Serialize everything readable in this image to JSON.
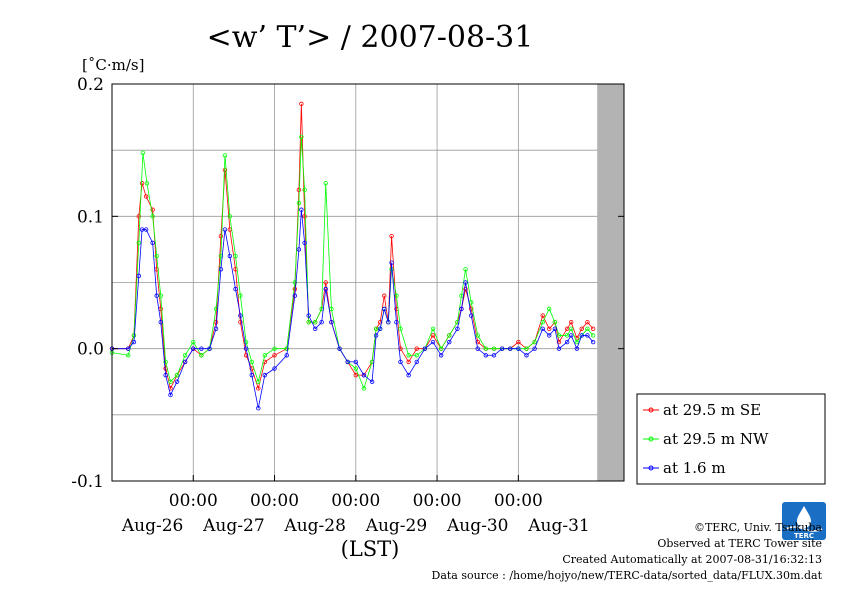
{
  "chart_data": {
    "type": "line",
    "title": "<w’ T’> / 2007-08-31",
    "ylabel": "[˚C·m/s]",
    "xlabel": "(LST)",
    "ylim": [
      -0.1,
      0.2
    ],
    "xlim": [
      0,
      6.3
    ],
    "yticks": [
      "0.2",
      "0.1",
      "0.0",
      "-0.1"
    ],
    "ytick_values": [
      0.2,
      0.1,
      0.0,
      -0.1
    ],
    "xticks_time": [
      "00:00",
      "00:00",
      "00:00",
      "00:00",
      "00:00"
    ],
    "xticks_date": [
      "Aug-26",
      "Aug-27",
      "Aug-28",
      "Aug-29",
      "Aug-30",
      "Aug-31"
    ],
    "no_data_shading": [
      5.97,
      6.3
    ],
    "grid": true,
    "legend_placement": "bottom-right outside",
    "series": [
      {
        "name": "at 29.5 m SE",
        "color": "#ff0000",
        "points": [
          [
            0.0,
            0.0
          ],
          [
            0.2,
            0.0
          ],
          [
            0.27,
            0.01
          ],
          [
            0.33,
            0.1
          ],
          [
            0.37,
            0.125
          ],
          [
            0.42,
            0.115
          ],
          [
            0.5,
            0.105
          ],
          [
            0.55,
            0.06
          ],
          [
            0.6,
            0.03
          ],
          [
            0.66,
            -0.015
          ],
          [
            0.72,
            -0.03
          ],
          [
            0.8,
            -0.02
          ],
          [
            0.9,
            -0.01
          ],
          [
            1.0,
            0.0
          ],
          [
            1.1,
            -0.005
          ],
          [
            1.2,
            0.0
          ],
          [
            1.28,
            0.02
          ],
          [
            1.34,
            0.085
          ],
          [
            1.39,
            0.135
          ],
          [
            1.45,
            0.09
          ],
          [
            1.52,
            0.06
          ],
          [
            1.58,
            0.02
          ],
          [
            1.65,
            -0.005
          ],
          [
            1.72,
            -0.015
          ],
          [
            1.8,
            -0.03
          ],
          [
            1.88,
            -0.01
          ],
          [
            2.0,
            -0.005
          ],
          [
            2.15,
            0.0
          ],
          [
            2.25,
            0.045
          ],
          [
            2.3,
            0.12
          ],
          [
            2.33,
            0.185
          ],
          [
            2.37,
            0.1
          ],
          [
            2.42,
            0.02
          ],
          [
            2.5,
            0.02
          ],
          [
            2.58,
            0.03
          ],
          [
            2.63,
            0.05
          ],
          [
            2.7,
            0.02
          ],
          [
            2.8,
            0.0
          ],
          [
            2.9,
            -0.01
          ],
          [
            3.0,
            -0.02
          ],
          [
            3.1,
            -0.02
          ],
          [
            3.2,
            -0.01
          ],
          [
            3.25,
            0.015
          ],
          [
            3.3,
            0.02
          ],
          [
            3.35,
            0.04
          ],
          [
            3.4,
            0.02
          ],
          [
            3.44,
            0.085
          ],
          [
            3.5,
            0.03
          ],
          [
            3.55,
            0.0
          ],
          [
            3.65,
            -0.01
          ],
          [
            3.75,
            0.0
          ],
          [
            3.85,
            0.0
          ],
          [
            3.95,
            0.01
          ],
          [
            4.05,
            0.0
          ],
          [
            4.15,
            0.01
          ],
          [
            4.25,
            0.02
          ],
          [
            4.3,
            0.03
          ],
          [
            4.35,
            0.045
          ],
          [
            4.42,
            0.03
          ],
          [
            4.5,
            0.005
          ],
          [
            4.6,
            0.0
          ],
          [
            4.7,
            0.0
          ],
          [
            4.8,
            0.0
          ],
          [
            4.9,
            0.0
          ],
          [
            5.0,
            0.005
          ],
          [
            5.1,
            0.0
          ],
          [
            5.2,
            0.005
          ],
          [
            5.3,
            0.025
          ],
          [
            5.38,
            0.015
          ],
          [
            5.45,
            0.02
          ],
          [
            5.5,
            0.005
          ],
          [
            5.6,
            0.015
          ],
          [
            5.65,
            0.02
          ],
          [
            5.72,
            0.008
          ],
          [
            5.78,
            0.015
          ],
          [
            5.85,
            0.02
          ],
          [
            5.92,
            0.015
          ]
        ]
      },
      {
        "name": "at 29.5 m NW",
        "color": "#00ff00",
        "points": [
          [
            0.0,
            -0.003
          ],
          [
            0.2,
            -0.005
          ],
          [
            0.27,
            0.01
          ],
          [
            0.33,
            0.08
          ],
          [
            0.38,
            0.148
          ],
          [
            0.43,
            0.125
          ],
          [
            0.5,
            0.1
          ],
          [
            0.55,
            0.07
          ],
          [
            0.6,
            0.04
          ],
          [
            0.66,
            -0.01
          ],
          [
            0.72,
            -0.025
          ],
          [
            0.8,
            -0.02
          ],
          [
            0.9,
            -0.005
          ],
          [
            1.0,
            0.005
          ],
          [
            1.1,
            -0.005
          ],
          [
            1.2,
            0.0
          ],
          [
            1.28,
            0.03
          ],
          [
            1.34,
            0.07
          ],
          [
            1.39,
            0.146
          ],
          [
            1.45,
            0.1
          ],
          [
            1.52,
            0.07
          ],
          [
            1.58,
            0.04
          ],
          [
            1.65,
            0.005
          ],
          [
            1.72,
            -0.01
          ],
          [
            1.8,
            -0.025
          ],
          [
            1.88,
            -0.005
          ],
          [
            2.0,
            0.0
          ],
          [
            2.15,
            0.0
          ],
          [
            2.25,
            0.05
          ],
          [
            2.3,
            0.11
          ],
          [
            2.33,
            0.16
          ],
          [
            2.37,
            0.12
          ],
          [
            2.42,
            0.02
          ],
          [
            2.5,
            0.02
          ],
          [
            2.58,
            0.03
          ],
          [
            2.63,
            0.125
          ],
          [
            2.7,
            0.03
          ],
          [
            2.8,
            0.0
          ],
          [
            2.9,
            -0.01
          ],
          [
            3.0,
            -0.015
          ],
          [
            3.1,
            -0.03
          ],
          [
            3.2,
            -0.01
          ],
          [
            3.25,
            0.015
          ],
          [
            3.3,
            0.015
          ],
          [
            3.35,
            0.03
          ],
          [
            3.4,
            0.02
          ],
          [
            3.44,
            0.06
          ],
          [
            3.5,
            0.04
          ],
          [
            3.55,
            0.015
          ],
          [
            3.65,
            -0.005
          ],
          [
            3.75,
            -0.005
          ],
          [
            3.85,
            0.0
          ],
          [
            3.95,
            0.015
          ],
          [
            4.05,
            0.0
          ],
          [
            4.15,
            0.01
          ],
          [
            4.25,
            0.02
          ],
          [
            4.3,
            0.04
          ],
          [
            4.35,
            0.06
          ],
          [
            4.42,
            0.035
          ],
          [
            4.5,
            0.01
          ],
          [
            4.6,
            0.0
          ],
          [
            4.7,
            0.0
          ],
          [
            4.8,
            0.0
          ],
          [
            4.9,
            0.0
          ],
          [
            5.0,
            0.0
          ],
          [
            5.1,
            0.0
          ],
          [
            5.2,
            0.005
          ],
          [
            5.3,
            0.02
          ],
          [
            5.38,
            0.03
          ],
          [
            5.45,
            0.02
          ],
          [
            5.5,
            0.01
          ],
          [
            5.6,
            0.01
          ],
          [
            5.65,
            0.015
          ],
          [
            5.72,
            0.005
          ],
          [
            5.78,
            0.01
          ],
          [
            5.85,
            0.015
          ],
          [
            5.92,
            0.01
          ]
        ]
      },
      {
        "name": "at 1.6 m",
        "color": "#0000ff",
        "points": [
          [
            0.0,
            0.0
          ],
          [
            0.2,
            0.0
          ],
          [
            0.27,
            0.005
          ],
          [
            0.33,
            0.055
          ],
          [
            0.37,
            0.09
          ],
          [
            0.42,
            0.09
          ],
          [
            0.5,
            0.08
          ],
          [
            0.55,
            0.04
          ],
          [
            0.6,
            0.02
          ],
          [
            0.66,
            -0.02
          ],
          [
            0.72,
            -0.035
          ],
          [
            0.8,
            -0.025
          ],
          [
            0.9,
            -0.01
          ],
          [
            1.0,
            0.0
          ],
          [
            1.1,
            0.0
          ],
          [
            1.2,
            0.0
          ],
          [
            1.28,
            0.015
          ],
          [
            1.34,
            0.06
          ],
          [
            1.39,
            0.09
          ],
          [
            1.45,
            0.07
          ],
          [
            1.52,
            0.045
          ],
          [
            1.58,
            0.025
          ],
          [
            1.65,
            0.0
          ],
          [
            1.72,
            -0.02
          ],
          [
            1.8,
            -0.045
          ],
          [
            1.88,
            -0.02
          ],
          [
            2.0,
            -0.015
          ],
          [
            2.15,
            -0.005
          ],
          [
            2.25,
            0.04
          ],
          [
            2.3,
            0.075
          ],
          [
            2.33,
            0.105
          ],
          [
            2.37,
            0.08
          ],
          [
            2.42,
            0.025
          ],
          [
            2.5,
            0.015
          ],
          [
            2.58,
            0.02
          ],
          [
            2.63,
            0.045
          ],
          [
            2.7,
            0.02
          ],
          [
            2.8,
            0.0
          ],
          [
            2.9,
            -0.01
          ],
          [
            3.0,
            -0.01
          ],
          [
            3.1,
            -0.02
          ],
          [
            3.2,
            -0.025
          ],
          [
            3.25,
            0.01
          ],
          [
            3.3,
            0.015
          ],
          [
            3.35,
            0.03
          ],
          [
            3.4,
            0.02
          ],
          [
            3.44,
            0.065
          ],
          [
            3.5,
            0.02
          ],
          [
            3.55,
            -0.01
          ],
          [
            3.65,
            -0.02
          ],
          [
            3.75,
            -0.01
          ],
          [
            3.85,
            0.0
          ],
          [
            3.95,
            0.005
          ],
          [
            4.05,
            -0.005
          ],
          [
            4.15,
            0.005
          ],
          [
            4.25,
            0.015
          ],
          [
            4.3,
            0.03
          ],
          [
            4.35,
            0.05
          ],
          [
            4.42,
            0.025
          ],
          [
            4.5,
            0.0
          ],
          [
            4.6,
            -0.005
          ],
          [
            4.7,
            -0.005
          ],
          [
            4.8,
            0.0
          ],
          [
            4.9,
            0.0
          ],
          [
            5.0,
            0.0
          ],
          [
            5.1,
            -0.005
          ],
          [
            5.2,
            0.0
          ],
          [
            5.3,
            0.015
          ],
          [
            5.38,
            0.01
          ],
          [
            5.45,
            0.015
          ],
          [
            5.5,
            0.0
          ],
          [
            5.6,
            0.005
          ],
          [
            5.65,
            0.01
          ],
          [
            5.72,
            0.0
          ],
          [
            5.78,
            0.01
          ],
          [
            5.85,
            0.01
          ],
          [
            5.92,
            0.005
          ]
        ]
      }
    ]
  },
  "footer": {
    "line1": "©TERC, Univ. Tsukuba",
    "line2": "Observed at TERC Tower site",
    "line3": "Created Automatically at 2007-08-31/16:32:13",
    "line4": "Data source : /home/hojyo/new/TERC-data/sorted_data/FLUX.30m.dat"
  },
  "logo": {
    "text": "TERC",
    "icon": "terc-logo-icon",
    "color": "#1a6fc4"
  },
  "colors": {
    "grid": "#999999",
    "no_data": "#b3b3b3"
  }
}
